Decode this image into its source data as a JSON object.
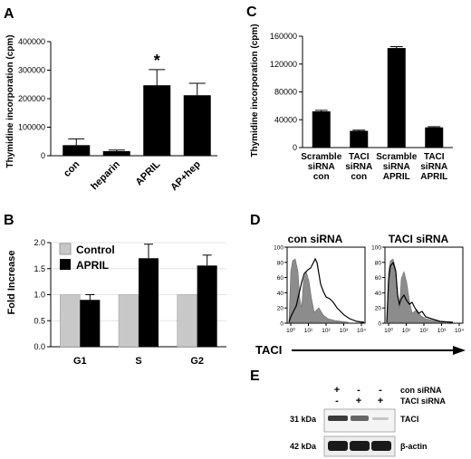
{
  "panels": {
    "A": "A",
    "B": "B",
    "C": "C",
    "D": "D",
    "E": "E"
  },
  "chart_data": [
    {
      "id": "A",
      "type": "bar",
      "ylabel": "Thymidine incorporation (cpm)",
      "categories": [
        "con",
        "heparin",
        "APRIL",
        "AP+hep"
      ],
      "values": [
        37000,
        16000,
        247000,
        212000
      ],
      "errors": [
        22000,
        4000,
        55000,
        42000
      ],
      "ylim": [
        0,
        400000
      ],
      "yticks": [
        "0",
        "100000",
        "200000",
        "300000",
        "400000"
      ],
      "annotations": [
        {
          "category": "APRIL",
          "text": "*"
        }
      ],
      "bar_color": "#000000"
    },
    {
      "id": "B",
      "type": "bar",
      "ylabel": "Fold Increase",
      "categories": [
        "G1",
        "S",
        "G2"
      ],
      "series": [
        {
          "name": "Control",
          "values": [
            1.0,
            1.0,
            1.0
          ],
          "errors": [
            0,
            0,
            0
          ],
          "color": "#c8c8c8"
        },
        {
          "name": "APRIL",
          "values": [
            0.9,
            1.7,
            1.56
          ],
          "errors": [
            0.1,
            0.27,
            0.2
          ],
          "color": "#000000"
        }
      ],
      "ylim": [
        0,
        2.0
      ],
      "yticks": [
        "0.0",
        "0.5",
        "1.0",
        "1.5",
        "2.0"
      ],
      "legend": "top-left",
      "grid": true
    },
    {
      "id": "C",
      "type": "bar",
      "ylabel": "Thymidine incorporation (cpm)",
      "categories": [
        [
          "Scramble",
          "siRNA",
          "con"
        ],
        [
          "TACI",
          "siRNA",
          "con"
        ],
        [
          "Scramble",
          "siRNA",
          "APRIL"
        ],
        [
          "TACI",
          "siRNA",
          "APRIL"
        ]
      ],
      "values": [
        52000,
        24000,
        143000,
        29000
      ],
      "errors": [
        1500,
        1000,
        2000,
        1000
      ],
      "ylim": [
        0,
        160000
      ],
      "yticks": [
        "0",
        "40000",
        "80000",
        "120000",
        "160000"
      ],
      "bar_color": "#000000"
    }
  ],
  "flow": {
    "left_title": "con siRNA",
    "right_title": "TACI siRNA",
    "yticks": [
      "0",
      "20",
      "40",
      "60",
      "80",
      "100"
    ],
    "xticks": [
      "10⁰",
      "10¹",
      "10²",
      "10³",
      "10⁴"
    ],
    "xlabel": "TACI"
  },
  "western": {
    "conditions": [
      {
        "label": "con siRNA",
        "marks": [
          "+",
          "-",
          "-"
        ]
      },
      {
        "label": "TACI siRNA",
        "marks": [
          "-",
          "+",
          "+"
        ]
      }
    ],
    "bands": [
      {
        "mw": "31 kDa",
        "protein": "TACI"
      },
      {
        "mw": "42 kDa",
        "protein": "β-actin"
      }
    ]
  }
}
